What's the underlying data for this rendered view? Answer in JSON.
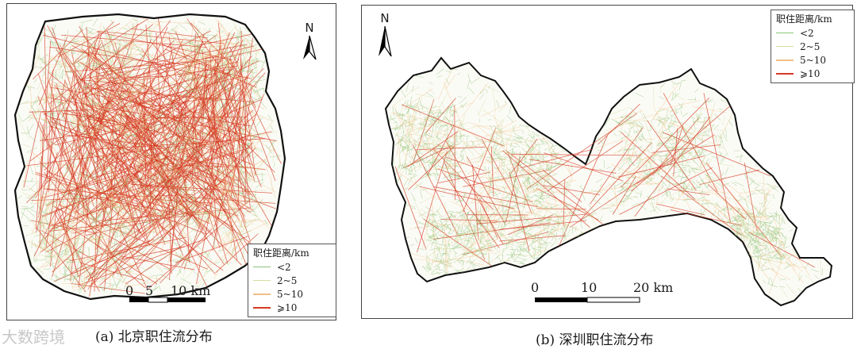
{
  "panels": [
    {
      "caption": "(a) 北京职住流分布",
      "north_label": "N",
      "legend_title": "职住距离/km",
      "scale_labels": [
        "0",
        "5",
        "10 km"
      ]
    },
    {
      "caption": "(b) 深圳职住流分布",
      "north_label": "N",
      "legend_title": "职住距离/km",
      "scale_labels": [
        "0",
        "10",
        "20 km"
      ]
    }
  ],
  "legend_classes": [
    {
      "label": "<2",
      "color": "#8cc47a"
    },
    {
      "label": "2~5",
      "color": "#d6dba0"
    },
    {
      "label": "5~10",
      "color": "#f2bf85"
    },
    {
      "label": "⩾10",
      "color": "#d63a22"
    }
  ],
  "watermark": "大数跨境"
}
